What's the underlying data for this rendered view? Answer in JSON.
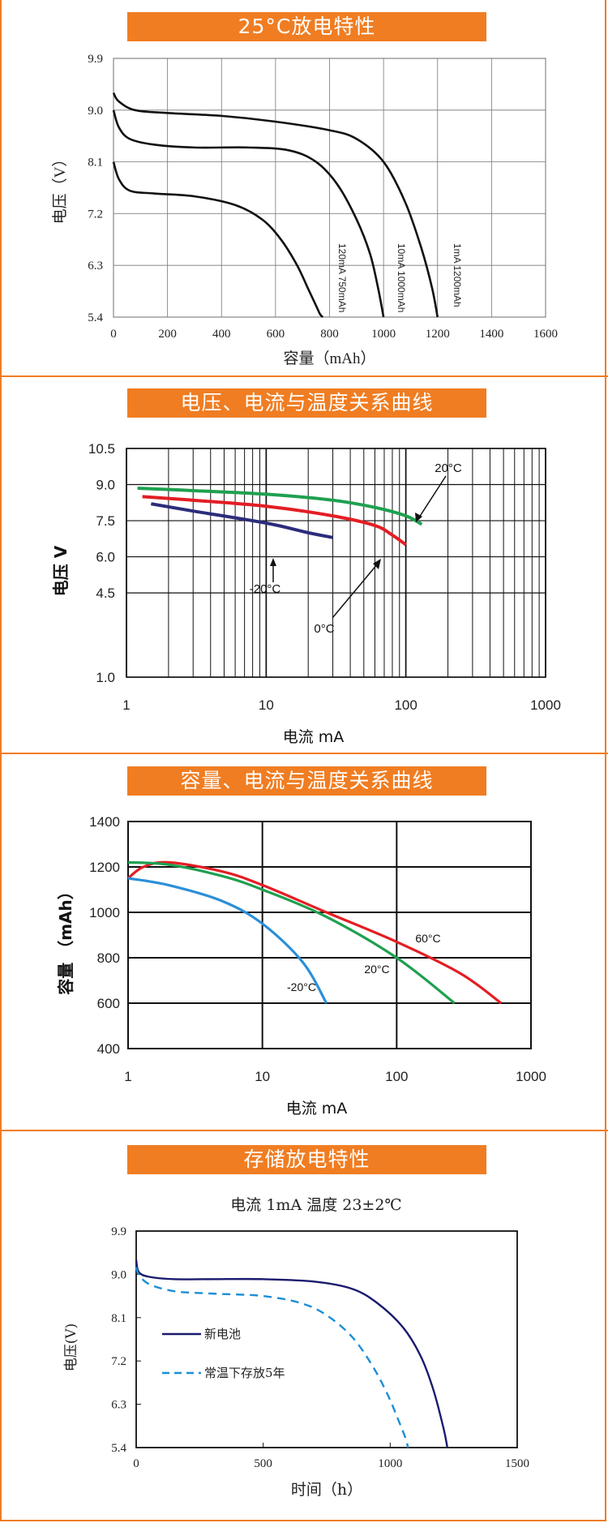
{
  "chart_data": [
    {
      "type": "line",
      "title": "25°C放电特性",
      "xlabel": "容量（mAh）",
      "ylabel": "电压（V）",
      "xlim": [
        0,
        1600
      ],
      "ylim": [
        5.4,
        9.9
      ],
      "x_ticks": [
        "0",
        "200",
        "400",
        "600",
        "800",
        "1000",
        "1200",
        "1400",
        "1600"
      ],
      "y_ticks": [
        "5.4",
        "6.3",
        "7.2",
        "8.1",
        "9.0",
        "9.9"
      ],
      "grid": true,
      "series": [
        {
          "name": "120mA 750mAh",
          "x": [
            0,
            20,
            60,
            150,
            300,
            450,
            550,
            620,
            680,
            720,
            750,
            765,
            775
          ],
          "y": [
            8.1,
            7.8,
            7.6,
            7.55,
            7.5,
            7.35,
            7.1,
            6.75,
            6.3,
            5.9,
            5.6,
            5.45,
            5.4
          ]
        },
        {
          "name": "10mA 1000mAh",
          "x": [
            0,
            20,
            60,
            150,
            300,
            500,
            650,
            750,
            830,
            900,
            950,
            980,
            1000
          ],
          "y": [
            9.0,
            8.7,
            8.5,
            8.4,
            8.35,
            8.35,
            8.3,
            8.1,
            7.7,
            7.1,
            6.5,
            5.9,
            5.4
          ]
        },
        {
          "name": "1mA 1200mAh",
          "x": [
            0,
            20,
            80,
            200,
            400,
            600,
            800,
            900,
            1000,
            1080,
            1140,
            1180,
            1200
          ],
          "y": [
            9.3,
            9.15,
            9.0,
            8.95,
            8.9,
            8.8,
            8.65,
            8.5,
            8.1,
            7.4,
            6.6,
            5.9,
            5.4
          ]
        }
      ],
      "annotations": [
        "120mA 750mAh",
        "10mA 1000mAh",
        "1mA 1200mAh"
      ]
    },
    {
      "type": "line",
      "title": "电压、电流与温度关系曲线",
      "xlabel": "电流 mA",
      "ylabel": "电压 V",
      "x_scale": "log",
      "xlim": [
        1,
        1000
      ],
      "ylim": [
        1.0,
        10.5
      ],
      "x_ticks": [
        "1",
        "10",
        "100",
        "1000"
      ],
      "y_ticks": [
        "1.0",
        "4.5",
        "6.0",
        "7.5",
        "9.0",
        "10.5"
      ],
      "grid": true,
      "series": [
        {
          "name": "20°C",
          "x": [
            1.2,
            3,
            10,
            30,
            60,
            100,
            130
          ],
          "y": [
            8.85,
            8.75,
            8.6,
            8.35,
            8.05,
            7.7,
            7.35
          ]
        },
        {
          "name": "0°C",
          "x": [
            1.3,
            3,
            10,
            30,
            60,
            80,
            100
          ],
          "y": [
            8.5,
            8.35,
            8.1,
            7.7,
            7.3,
            6.9,
            6.5
          ]
        },
        {
          "name": "-20°C",
          "x": [
            1.5,
            3,
            10,
            20,
            30
          ],
          "y": [
            8.2,
            7.9,
            7.4,
            7.0,
            6.8
          ]
        }
      ],
      "annotations": [
        "20°C",
        "0°C",
        "-20°C"
      ]
    },
    {
      "type": "line",
      "title": "容量、电流与温度关系曲线",
      "xlabel": "电流 mA",
      "ylabel": "容量 （mAh）",
      "x_scale": "log",
      "xlim": [
        1,
        1000
      ],
      "ylim": [
        400,
        1400
      ],
      "x_ticks": [
        "1",
        "10",
        "100",
        "1000"
      ],
      "y_ticks": [
        "400",
        "600",
        "800",
        "1000",
        "1200",
        "1400"
      ],
      "grid": true,
      "series": [
        {
          "name": "60°C",
          "x": [
            1,
            1.3,
            2,
            5,
            10,
            30,
            100,
            300,
            600
          ],
          "y": [
            1150,
            1200,
            1220,
            1180,
            1120,
            1000,
            870,
            730,
            600
          ]
        },
        {
          "name": "20°C",
          "x": [
            1,
            2,
            5,
            10,
            30,
            100,
            270
          ],
          "y": [
            1220,
            1210,
            1160,
            1100,
            980,
            800,
            600
          ]
        },
        {
          "name": "-20°C",
          "x": [
            1,
            2,
            5,
            10,
            20,
            30
          ],
          "y": [
            1150,
            1120,
            1050,
            950,
            780,
            600
          ]
        }
      ],
      "annotations": [
        "60°C",
        "20°C",
        "-20°C"
      ]
    },
    {
      "type": "line",
      "title": "存储放电特性",
      "subtitle": "电流 1mA 温度 23±2℃",
      "xlabel": "时间（h）",
      "ylabel": "电压(V)",
      "xlim": [
        0,
        1500
      ],
      "ylim": [
        5.4,
        9.9
      ],
      "x_ticks": [
        "0",
        "500",
        "1000",
        "1500"
      ],
      "y_ticks": [
        "5.4",
        "6.3",
        "7.2",
        "8.1",
        "9.0",
        "9.9"
      ],
      "grid": false,
      "legend": "left",
      "series": [
        {
          "name": "新电池",
          "x": [
            0,
            10,
            50,
            150,
            300,
            500,
            700,
            850,
            950,
            1050,
            1120,
            1170,
            1210,
            1225
          ],
          "y": [
            9.3,
            9.05,
            8.95,
            8.9,
            8.9,
            8.9,
            8.85,
            8.7,
            8.4,
            7.9,
            7.3,
            6.6,
            5.8,
            5.4
          ]
        },
        {
          "name": "常温下存放5年",
          "x": [
            0,
            10,
            50,
            150,
            300,
            500,
            650,
            750,
            850,
            930,
            990,
            1030,
            1060,
            1070
          ],
          "y": [
            9.15,
            9.0,
            8.8,
            8.65,
            8.6,
            8.55,
            8.4,
            8.15,
            7.7,
            7.1,
            6.5,
            6.0,
            5.6,
            5.4
          ]
        }
      ]
    }
  ],
  "colors": {
    "accent": "#f07d22",
    "green": "#1fa050",
    "red": "#e31e24",
    "navy": "#2c2c7c",
    "blue": "#2b8fd8",
    "dark_navy": "#1a1a6e",
    "dash_blue": "#1b8ed6"
  }
}
